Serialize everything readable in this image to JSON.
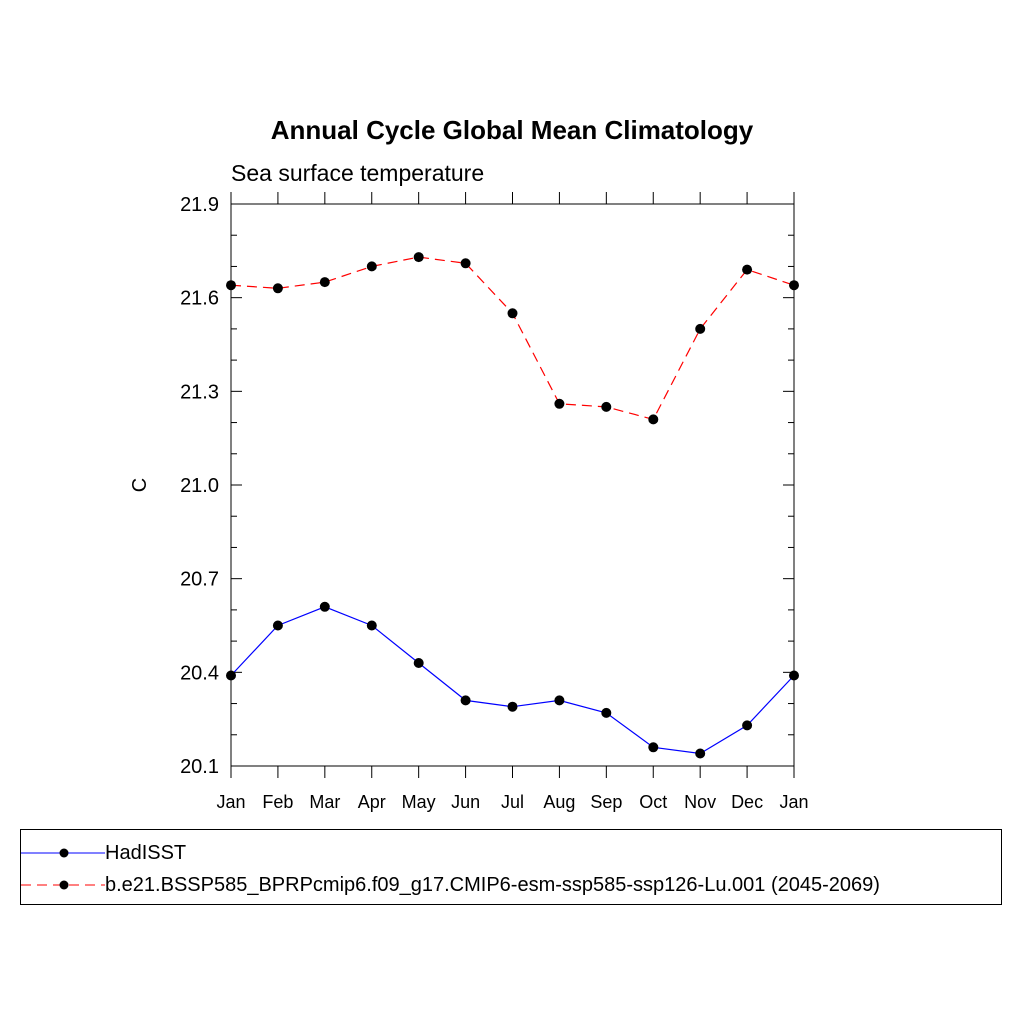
{
  "chart_data": {
    "type": "line",
    "title": "Annual Cycle Global Mean Climatology",
    "subtitle": "Sea surface temperature",
    "xlabel": "",
    "ylabel": "C",
    "categories": [
      "Jan",
      "Feb",
      "Mar",
      "Apr",
      "May",
      "Jun",
      "Jul",
      "Aug",
      "Sep",
      "Oct",
      "Nov",
      "Dec",
      "Jan"
    ],
    "ylim": [
      20.1,
      21.9
    ],
    "yticks": [
      "20.1",
      "20.4",
      "20.7",
      "21.0",
      "21.3",
      "21.6",
      "21.9"
    ],
    "grid": false,
    "legend_position": "bottom",
    "series": [
      {
        "name": "HadISST",
        "color": "#0000ff",
        "dash": "solid",
        "values": [
          20.39,
          20.55,
          20.61,
          20.55,
          20.43,
          20.31,
          20.29,
          20.31,
          20.27,
          20.16,
          20.14,
          20.23,
          20.39
        ]
      },
      {
        "name": "b.e21.BSSP585_BPRPcmip6.f09_g17.CMIP6-esm-ssp585-ssp126-Lu.001 (2045-2069)",
        "color": "#ff0000",
        "dash": "dashed",
        "values": [
          21.64,
          21.63,
          21.65,
          21.7,
          21.73,
          21.71,
          21.55,
          21.26,
          21.25,
          21.21,
          21.5,
          21.69,
          21.64
        ]
      }
    ]
  }
}
